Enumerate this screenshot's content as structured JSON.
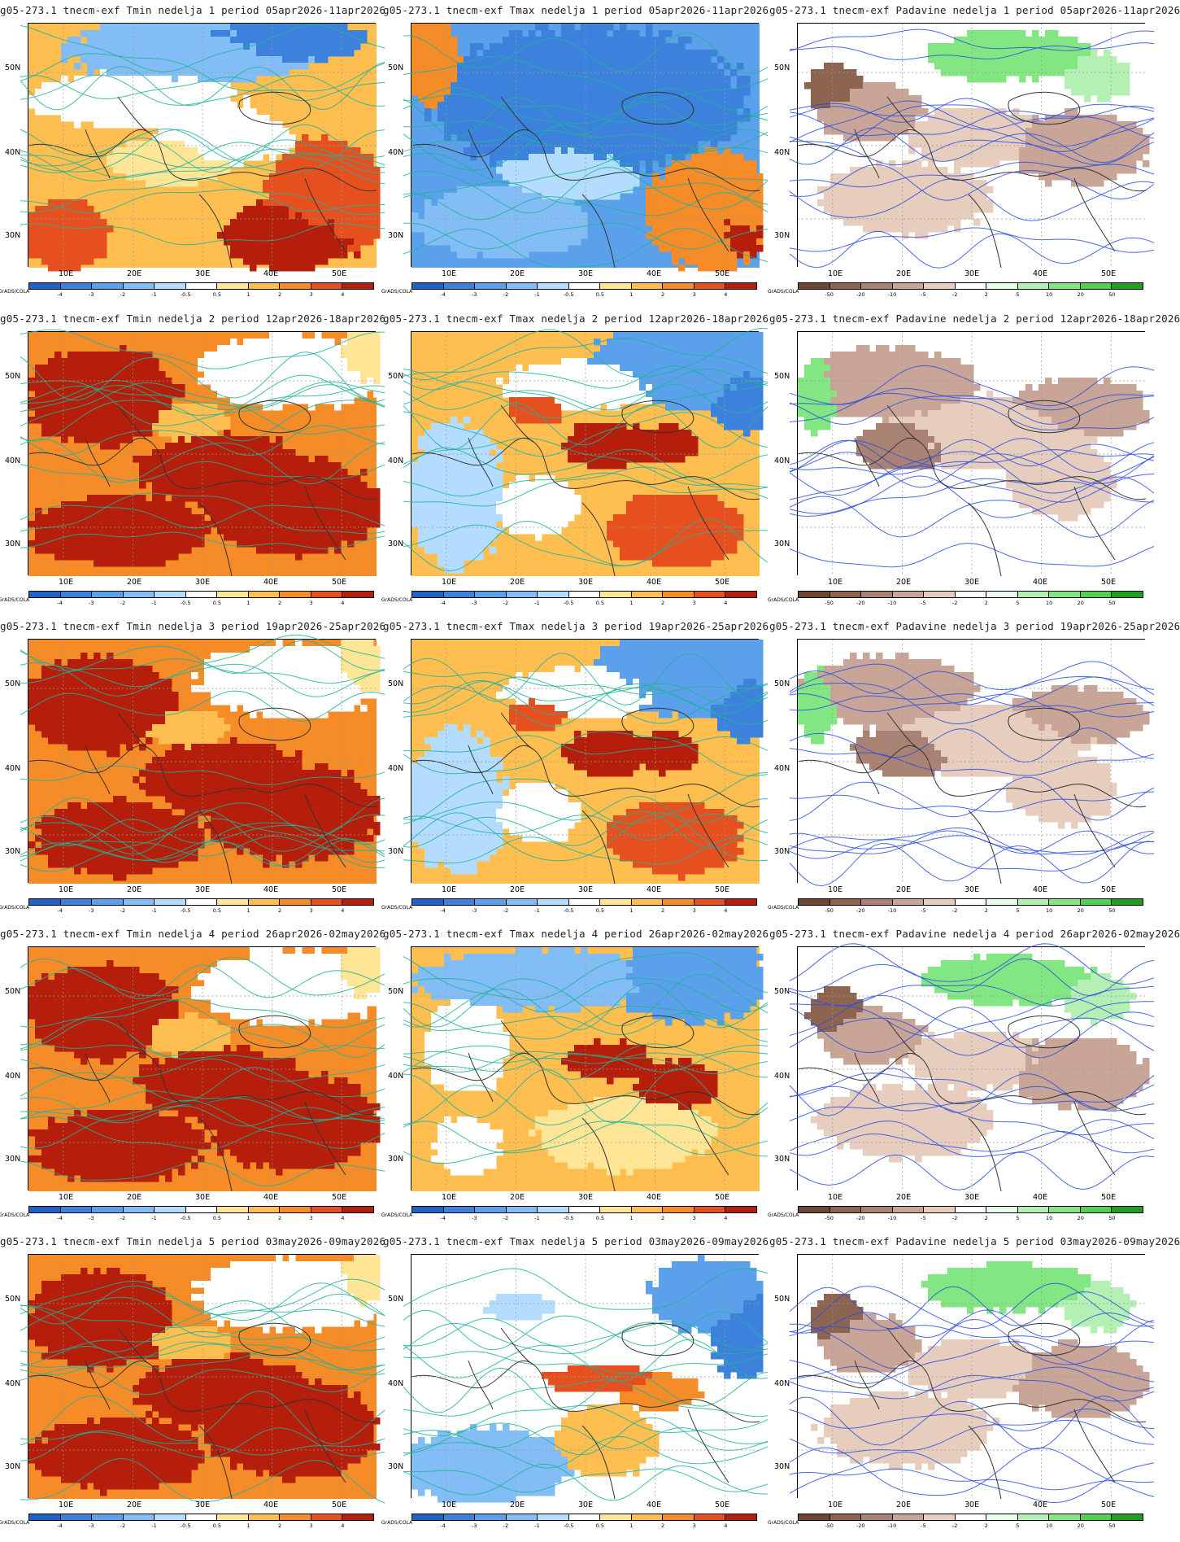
{
  "grads_label": "GrADS/COLA",
  "lat_labels": [
    "50N",
    "40N",
    "30N"
  ],
  "lon_labels": [
    "10E",
    "20E",
    "30E",
    "40E",
    "50E"
  ],
  "colorbars": {
    "temp": {
      "ticks": [
        "-4",
        "-3",
        "-2",
        "-1",
        "-0.5",
        "0.5",
        "1",
        "2",
        "3",
        "4"
      ],
      "colors": [
        "#1e64c8",
        "#3c82dc",
        "#5aa0eb",
        "#82bef5",
        "#b4dcff",
        "#ffffff",
        "#ffe696",
        "#ffbe50",
        "#f58c28",
        "#e6501e",
        "#b41e0a"
      ]
    },
    "precip": {
      "ticks": [
        "-50",
        "-20",
        "-10",
        "-5",
        "-2",
        "2",
        "5",
        "10",
        "20",
        "50"
      ],
      "colors": [
        "#6e4632",
        "#8c6450",
        "#aa8273",
        "#c8a596",
        "#e6cdbe",
        "#ffffff",
        "#e6ffe6",
        "#b4f0b4",
        "#82e682",
        "#50d250",
        "#1ea01e"
      ]
    }
  },
  "panels": [
    {
      "row": 1,
      "type": "temp",
      "scene": "cold",
      "title": "g05-273.1  tnecm-exf  Tmin  nedelja  1  period  05apr2026-11apr2026"
    },
    {
      "row": 1,
      "type": "temp",
      "scene": "verycold",
      "title": "g05-273.1  tnecm-exf  Tmax  nedelja  1  period  05apr2026-11apr2026"
    },
    {
      "row": 1,
      "type": "precip",
      "scene": "pmixed",
      "title": "g05-273.1  tnecm-exf  Padavine  nedelja  1  period  05apr2026-11apr2026"
    },
    {
      "row": 2,
      "type": "temp",
      "scene": "hot",
      "title": "g05-273.1  tnecm-exf  Tmin  nedelja  2  period  12apr2026-18apr2026"
    },
    {
      "row": 2,
      "type": "temp",
      "scene": "mixed",
      "title": "g05-273.1  tnecm-exf  Tmax  nedelja  2  period  12apr2026-18apr2026"
    },
    {
      "row": 2,
      "type": "precip",
      "scene": "pdry",
      "title": "g05-273.1  tnecm-exf  Padavine  nedelja  2  period  12apr2026-18apr2026"
    },
    {
      "row": 3,
      "type": "temp",
      "scene": "hot",
      "title": "g05-273.1  tnecm-exf  Tmin  nedelja  3  period  19apr2026-25apr2026"
    },
    {
      "row": 3,
      "type": "temp",
      "scene": "mixed",
      "title": "g05-273.1  tnecm-exf  Tmax  nedelja  3  period  19apr2026-25apr2026"
    },
    {
      "row": 3,
      "type": "precip",
      "scene": "pdry",
      "title": "g05-273.1  tnecm-exf  Padavine  nedelja  3  period  19apr2026-25apr2026"
    },
    {
      "row": 4,
      "type": "temp",
      "scene": "hot",
      "title": "g05-273.1  tnecm-exf  Tmin  nedelja  4  period  26apr2026-02may2026"
    },
    {
      "row": 4,
      "type": "temp",
      "scene": "mixed2",
      "title": "g05-273.1  tnecm-exf  Tmax  nedelja  4  period  26apr2026-02may2026"
    },
    {
      "row": 4,
      "type": "precip",
      "scene": "pmixed",
      "title": "g05-273.1  tnecm-exf  Padavine  nedelja  4  period  26apr2026-02may2026"
    },
    {
      "row": 5,
      "type": "temp",
      "scene": "hot",
      "title": "g05-273.1  tnecm-exf  Tmin  nedelja  5  period  03may2026-09may2026"
    },
    {
      "row": 5,
      "type": "temp",
      "scene": "mild",
      "title": "g05-273.1  tnecm-exf  Tmax  nedelja  5  period  03may2026-09may2026"
    },
    {
      "row": 5,
      "type": "precip",
      "scene": "pmixed",
      "title": "g05-273.1  tnecm-exf  Padavine  nedelja  5  period  03may2026-09may2026"
    }
  ]
}
